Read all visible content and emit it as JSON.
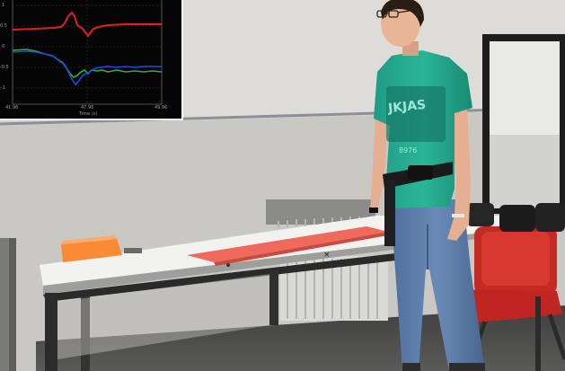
{
  "photo": {
    "subject": "person standing beside a lab table with a red mat, wearing a sensor belt",
    "shirt_text": {
      "line1": "JKJAS",
      "line2": "8976"
    }
  },
  "inset_plot": {
    "background": "#050505",
    "grid_color": "#3a3a3a",
    "series_colors": {
      "red": "#e0201c",
      "blue": "#1f4bd8",
      "green": "#2fae3a"
    },
    "y_ticks": [
      "1",
      "0.5",
      "0",
      "-0.5",
      "-1"
    ],
    "x_ticks": [
      "41.96",
      "47.96",
      "49.96"
    ],
    "x_label": "Time (s)"
  }
}
